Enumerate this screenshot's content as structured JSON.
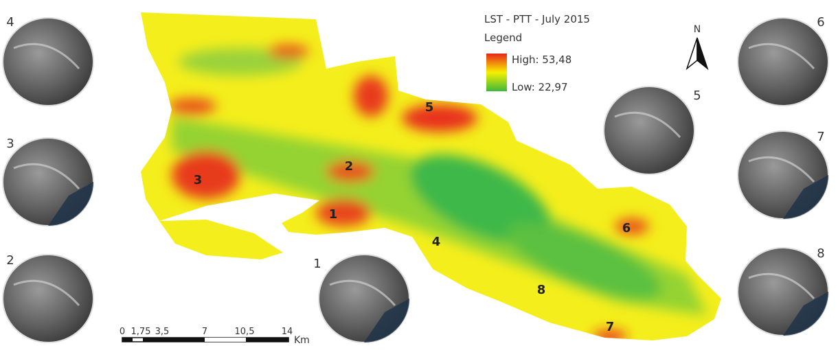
{
  "title": "LST - PTT - July 2015",
  "legend": {
    "title": "Legend",
    "high": "High: 53,48",
    "low": "Low:  22,97"
  },
  "north": "N",
  "map_labels": [
    "1",
    "2",
    "3",
    "4",
    "5",
    "6",
    "7",
    "8"
  ],
  "insets": [
    {
      "label": "4"
    },
    {
      "label": "3"
    },
    {
      "label": "2"
    },
    {
      "label": "1"
    },
    {
      "label": "5"
    },
    {
      "label": "6"
    },
    {
      "label": "7"
    },
    {
      "label": "8"
    }
  ],
  "scale_bar": {
    "ticks": [
      "0",
      "1,75",
      "3,5",
      "7",
      "10,5",
      "14"
    ],
    "unit": "Km"
  }
}
